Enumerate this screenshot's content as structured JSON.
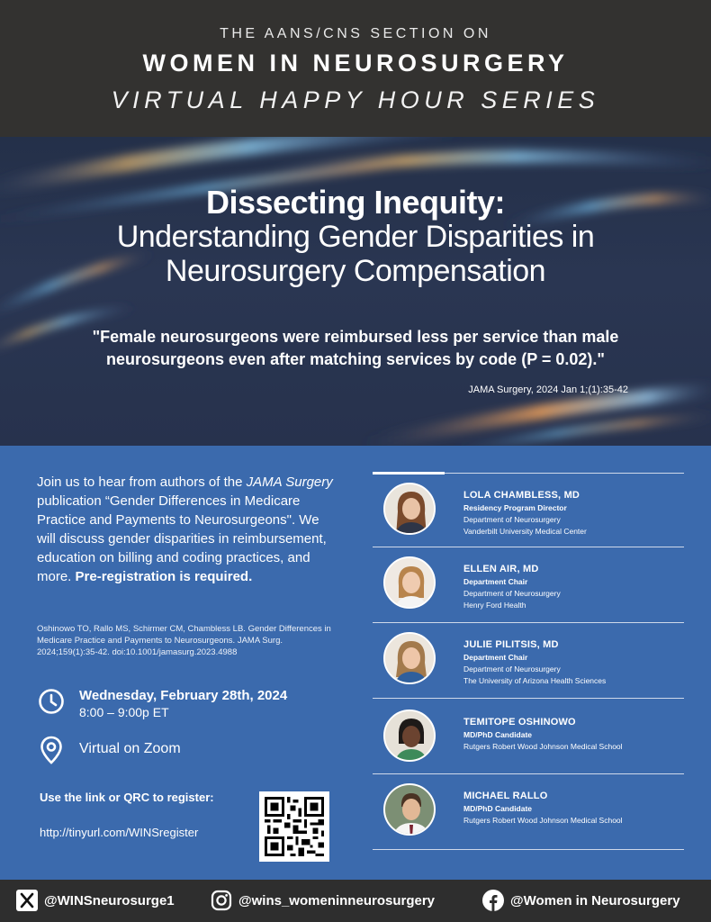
{
  "header": {
    "pre_title": "THE AANS/CNS SECTION ON",
    "title": "WOMEN IN NEUROSURGERY",
    "series": "VIRTUAL HAPPY HOUR SERIES"
  },
  "hero": {
    "title_bold": "Dissecting Inequity:",
    "title_line": "Understanding Gender Disparities in Neurosurgery Compensation",
    "quote": "\"Female neurosurgeons were reimbursed less per service than male neurosurgeons even after matching services by code (P = 0.02).\"",
    "citation": "JAMA Surgery, 2024 Jan 1;(1):35-42"
  },
  "intro": {
    "part1": "Join us to hear from authors of the ",
    "journal": "JAMA Surgery",
    "part2": " publication “Gender Differences in Medicare Practice and Payments to Neurosurgeons\". We will discuss gender disparities in reimbursement, education on billing and coding practices, and more. ",
    "required": "Pre-registration is required."
  },
  "reference": "Oshinowo TO, Rallo MS, Schirmer CM, Chambless LB. Gender Differences in Medicare Practice and Payments to Neurosurgeons. JAMA Surg. 2024;159(1):35-42. doi:10.1001/jamasurg.2023.4988",
  "event": {
    "date": "Wednesday, February 28th, 2024",
    "time": "8:00 – 9:00p ET",
    "venue": "Virtual on Zoom"
  },
  "registration": {
    "label": "Use the link or QRC to register:",
    "link": "http://tinyurl.com/WINSregister"
  },
  "speakers": [
    {
      "name": "LOLA CHAMBLESS, MD",
      "role": "Residency Program Director",
      "line1": "Department of Neurosurgery",
      "line2": "Vanderbilt University Medical Center"
    },
    {
      "name": "ELLEN AIR, MD",
      "role": "Department Chair",
      "line1": "Department of Neurosurgery",
      "line2": "Henry Ford Health"
    },
    {
      "name": "JULIE PILITSIS, MD",
      "role": "Department Chair",
      "line1": "Department of Neurosurgery",
      "line2": "The University of Arizona Health Sciences"
    },
    {
      "name": "TEMITOPE OSHINOWO",
      "role": "MD/PhD Candidate",
      "line1": "Rutgers Robert Wood Johnson Medical School",
      "line2": ""
    },
    {
      "name": "MICHAEL RALLO",
      "role": "MD/PhD Candidate",
      "line1": "Rutgers Robert Wood Johnson Medical School",
      "line2": ""
    }
  ],
  "social": {
    "x": "@WINSneurosurge1",
    "instagram": "@wins_womeninneurosurgery",
    "facebook": "@Women in Neurosurgery"
  },
  "colors": {
    "header_bg": "#333230",
    "hero_bg": "#27324d",
    "info_bg": "#3b6aad",
    "footer_bg": "#2e2e2e"
  }
}
